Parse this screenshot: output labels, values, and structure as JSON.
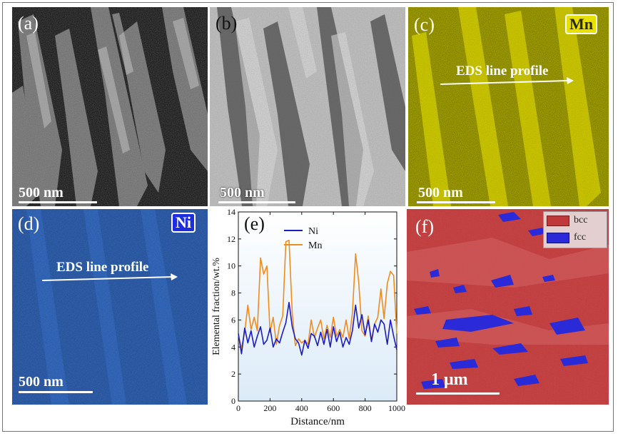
{
  "panels": {
    "a": {
      "label": "(a)",
      "scale": "500 nm"
    },
    "b": {
      "label": "(b)",
      "scale": "500 nm"
    },
    "c": {
      "label": "(c)",
      "scale": "500 nm",
      "element": "Mn",
      "eds": "EDS line profile"
    },
    "d": {
      "label": "(d)",
      "scale": "500 nm",
      "element": "Ni",
      "eds": "EDS line profile"
    },
    "e": {
      "label": "(e)"
    },
    "f": {
      "label": "(f)",
      "scale": "1 μm",
      "legend": [
        "bcc",
        "fcc"
      ]
    }
  },
  "colors": {
    "ni": "#1c1cc4",
    "mn": "#f08c1c",
    "yellow": "#e8e000",
    "blue": "#2e62c8",
    "bcc": "#c0393a",
    "fcc": "#2a2ad8",
    "plot_bg": "#dcebf8"
  },
  "chart_data": {
    "type": "line",
    "xlabel": "Distance/nm",
    "ylabel": "Elemental fraction/wt.%",
    "xlim": [
      0,
      1000
    ],
    "ylim": [
      0,
      14
    ],
    "xticks": [
      0,
      200,
      400,
      600,
      800,
      1000
    ],
    "yticks": [
      0,
      2,
      4,
      6,
      8,
      10,
      12,
      14
    ],
    "legend_position": "top-center",
    "series": [
      {
        "name": "Ni",
        "x": [
          0,
          20,
          40,
          60,
          80,
          100,
          120,
          140,
          160,
          180,
          200,
          220,
          240,
          260,
          280,
          300,
          320,
          340,
          360,
          380,
          400,
          420,
          440,
          460,
          480,
          500,
          520,
          540,
          560,
          580,
          600,
          620,
          640,
          660,
          680,
          700,
          720,
          740,
          760,
          780,
          800,
          820,
          840,
          860,
          880,
          900,
          920,
          940,
          960,
          980,
          1000
        ],
        "y": [
          5.0,
          3.5,
          5.4,
          4.3,
          5.2,
          4.0,
          4.8,
          5.5,
          4.2,
          4.5,
          5.4,
          4.0,
          4.6,
          4.3,
          5.1,
          5.8,
          7.3,
          5.5,
          4.6,
          4.3,
          3.4,
          4.5,
          3.9,
          5.0,
          4.8,
          4.1,
          5.1,
          4.2,
          5.3,
          4.0,
          5.5,
          4.4,
          5.1,
          4.0,
          4.7,
          4.2,
          5.2,
          7.1,
          5.4,
          6.4,
          4.9,
          6.0,
          4.4,
          5.7,
          5.1,
          6.0,
          5.7,
          4.2,
          6.0,
          4.8,
          3.8
        ]
      },
      {
        "name": "Mn",
        "x": [
          0,
          20,
          40,
          60,
          80,
          100,
          120,
          140,
          160,
          180,
          200,
          220,
          240,
          260,
          280,
          300,
          320,
          340,
          360,
          380,
          400,
          420,
          440,
          460,
          480,
          500,
          520,
          540,
          560,
          580,
          600,
          620,
          640,
          660,
          680,
          700,
          720,
          740,
          760,
          780,
          800,
          820,
          840,
          860,
          880,
          900,
          920,
          940,
          960,
          980,
          1000
        ],
        "y": [
          4.9,
          3.9,
          5.1,
          7.1,
          5.3,
          6.2,
          5.2,
          10.6,
          9.4,
          10.0,
          5.1,
          6.2,
          4.2,
          5.6,
          6.3,
          11.8,
          11.9,
          6.5,
          4.1,
          4.6,
          4.3,
          4.5,
          4.2,
          6.0,
          4.7,
          5.4,
          6.0,
          4.6,
          5.6,
          4.7,
          6.2,
          4.8,
          5.3,
          4.7,
          6.0,
          4.6,
          6.5,
          10.9,
          8.8,
          5.2,
          4.8,
          6.3,
          4.5,
          5.7,
          6.2,
          8.3,
          6.1,
          8.7,
          9.6,
          9.3,
          5.0
        ]
      }
    ]
  }
}
